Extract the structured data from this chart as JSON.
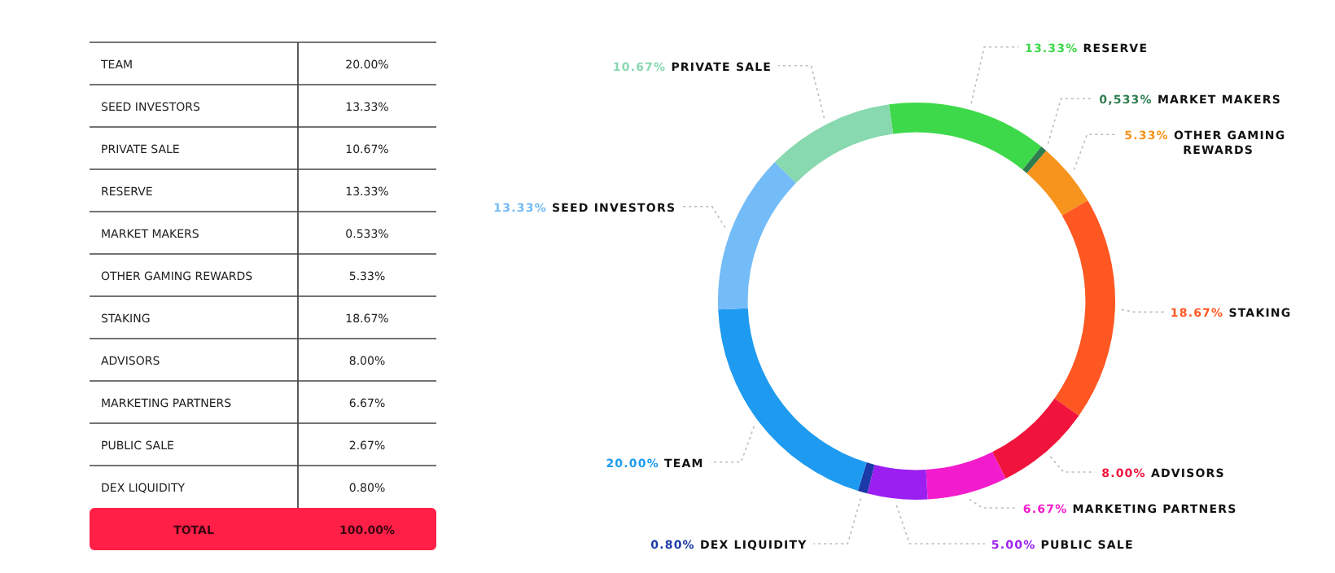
{
  "chart_data": [
    {
      "type": "other",
      "categories": [
        "TEAM",
        "SEED INVESTORS",
        "PRIVATE SALE",
        "RESERVE",
        "MARKET MAKERS",
        "OTHER GAMING REWARDS",
        "STAKING",
        "ADVISORS",
        "MARKETING PARTNERS",
        "PUBLIC SALE",
        "DEX LIQUIDITY"
      ],
      "values": [
        20.0,
        13.33,
        10.67,
        13.33,
        0.533,
        5.33,
        18.67,
        8.0,
        6.67,
        2.67,
        0.8
      ],
      "value_labels": [
        "20.00%",
        "13.33%",
        "10.67%",
        "13.33%",
        "0.533%",
        "5.33%",
        "18.67%",
        "8.00%",
        "6.67%",
        "2.67%",
        "0.80%"
      ],
      "annotations": [
        "TOTAL"
      ],
      "totals": [
        "100.00%"
      ]
    },
    {
      "type": "donut",
      "categories": [
        "RESERVE",
        "MARKET MAKERS",
        "OTHER GAMING REWARDS",
        "STAKING",
        "ADVISORS",
        "MARKETING PARTNERS",
        "PUBLIC SALE",
        "DEX LIQUIDITY",
        "TEAM",
        "SEED INVESTORS",
        "PRIVATE SALE"
      ],
      "values": [
        13.33,
        0.533,
        5.33,
        18.67,
        8.0,
        6.67,
        5.0,
        0.8,
        20.0,
        13.33,
        10.67
      ],
      "value_labels": [
        "13.33%",
        "0,533%",
        "5.33%",
        "18.67%",
        "8.00%",
        "6.67%",
        "5.00%",
        "0.80%",
        "20.00%",
        "13.33%",
        "10.67%"
      ],
      "colors": [
        "#3dd94a",
        "#2e7d4f",
        "#f7941d",
        "#ff5722",
        "#f0143c",
        "#f31ccd",
        "#9b1ff0",
        "#1b3aa8",
        "#1e9bf0",
        "#74bcf7",
        "#88d8b0"
      ]
    }
  ]
}
